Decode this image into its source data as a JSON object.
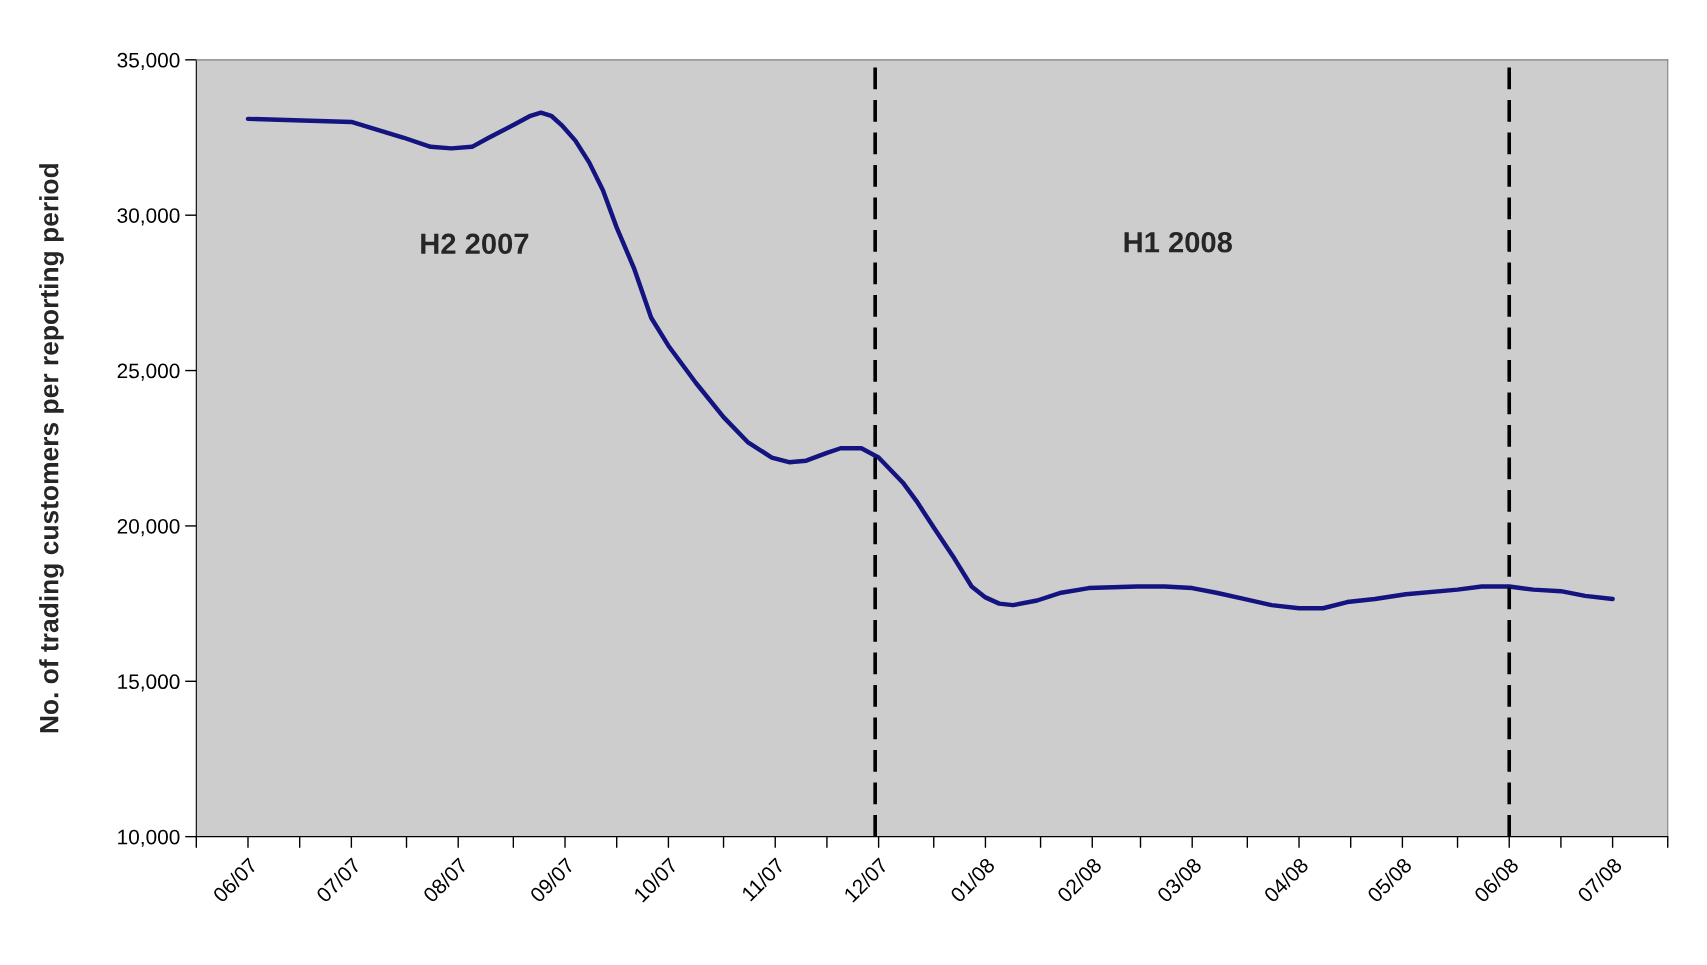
{
  "chart_data": {
    "type": "line",
    "ylabel": "No. of trading customers per reporting period",
    "series": [
      {
        "color": "#141480",
        "x": [
          "2007-06-16",
          "2007-07-16",
          "2007-07-31",
          "2007-08-08",
          "2007-08-14",
          "2007-08-20",
          "2007-08-25",
          "2007-09-01",
          "2007-09-06",
          "2007-09-09",
          "2007-09-12",
          "2007-09-15",
          "2007-09-19",
          "2007-09-23",
          "2007-09-27",
          "2007-10-01",
          "2007-10-06",
          "2007-10-11",
          "2007-10-16",
          "2007-10-24",
          "2007-11-01",
          "2007-11-08",
          "2007-11-15",
          "2007-11-20",
          "2007-11-25",
          "2007-12-01",
          "2007-12-05",
          "2007-12-11",
          "2007-12-16",
          "2007-12-23",
          "2007-12-27",
          "2008-01-01",
          "2008-01-07",
          "2008-01-12",
          "2008-01-16",
          "2008-01-20",
          "2008-01-24",
          "2008-01-31",
          "2008-02-07",
          "2008-02-15",
          "2008-02-29",
          "2008-03-08",
          "2008-03-16",
          "2008-03-23",
          "2008-03-31",
          "2008-04-08",
          "2008-04-16",
          "2008-04-23",
          "2008-04-30",
          "2008-05-08",
          "2008-05-17",
          "2008-06-01",
          "2008-06-08",
          "2008-06-16",
          "2008-06-23",
          "2008-07-01",
          "2008-07-08",
          "2008-07-16"
        ],
        "values": [
          33100,
          33000,
          32500,
          32200,
          32150,
          32200,
          32500,
          32900,
          33200,
          33300,
          33200,
          32900,
          32400,
          31700,
          30800,
          29600,
          28300,
          26700,
          25800,
          24600,
          23500,
          22700,
          22200,
          22050,
          22100,
          22350,
          22500,
          22500,
          22200,
          21400,
          20800,
          19950,
          18950,
          18050,
          17700,
          17500,
          17450,
          17600,
          17850,
          18000,
          18050,
          18050,
          18000,
          17850,
          17650,
          17450,
          17350,
          17350,
          17550,
          17650,
          17800,
          17950,
          18050,
          18050,
          17950,
          17900,
          17750,
          17650
        ]
      }
    ],
    "xlim": [
      "2007-06-01",
      "2008-08-01"
    ],
    "xticks": [
      {
        "value": "2007-06-01",
        "label": null
      },
      {
        "value": "2007-06-16",
        "label": "06/07"
      },
      {
        "value": "2007-07-01",
        "label": null
      },
      {
        "value": "2007-07-16",
        "label": "07/07"
      },
      {
        "value": "2007-08-01",
        "label": null
      },
      {
        "value": "2007-08-16",
        "label": "08/07"
      },
      {
        "value": "2007-09-01",
        "label": null
      },
      {
        "value": "2007-09-16",
        "label": "09/07"
      },
      {
        "value": "2007-10-01",
        "label": null
      },
      {
        "value": "2007-10-16",
        "label": "10/07"
      },
      {
        "value": "2007-11-01",
        "label": null
      },
      {
        "value": "2007-11-16",
        "label": "11/07"
      },
      {
        "value": "2007-12-01",
        "label": null
      },
      {
        "value": "2007-12-16",
        "label": "12/07"
      },
      {
        "value": "2008-01-01",
        "label": null
      },
      {
        "value": "2008-01-16",
        "label": "01/08"
      },
      {
        "value": "2008-02-01",
        "label": null
      },
      {
        "value": "2008-02-16",
        "label": "02/08"
      },
      {
        "value": "2008-03-01",
        "label": null
      },
      {
        "value": "2008-03-16",
        "label": "03/08"
      },
      {
        "value": "2008-04-01",
        "label": null
      },
      {
        "value": "2008-04-16",
        "label": "04/08"
      },
      {
        "value": "2008-05-01",
        "label": null
      },
      {
        "value": "2008-05-16",
        "label": "05/08"
      },
      {
        "value": "2008-06-01",
        "label": null
      },
      {
        "value": "2008-06-16",
        "label": "06/08"
      },
      {
        "value": "2008-07-01",
        "label": null
      },
      {
        "value": "2008-07-16",
        "label": "07/08"
      },
      {
        "value": "2008-08-01",
        "label": null
      }
    ],
    "ylim": [
      10000,
      35000
    ],
    "yticks": [
      {
        "value": 10000,
        "label": "10,000"
      },
      {
        "value": 15000,
        "label": "15,000"
      },
      {
        "value": 20000,
        "label": "20,000"
      },
      {
        "value": 25000,
        "label": "25,000"
      },
      {
        "value": 30000,
        "label": "30,000"
      },
      {
        "value": 35000,
        "label": "35,000"
      }
    ],
    "ref_lines": [
      {
        "axis": "x",
        "value": "2007-12-15",
        "color": "#000000",
        "line_style": "dashed"
      },
      {
        "axis": "x",
        "value": "2008-06-16",
        "color": "#000000",
        "line_style": "dashed"
      }
    ],
    "annotations": [
      "H2 2007",
      "H1 2008"
    ],
    "legend": false,
    "marker": "none",
    "line_style": "solid"
  }
}
